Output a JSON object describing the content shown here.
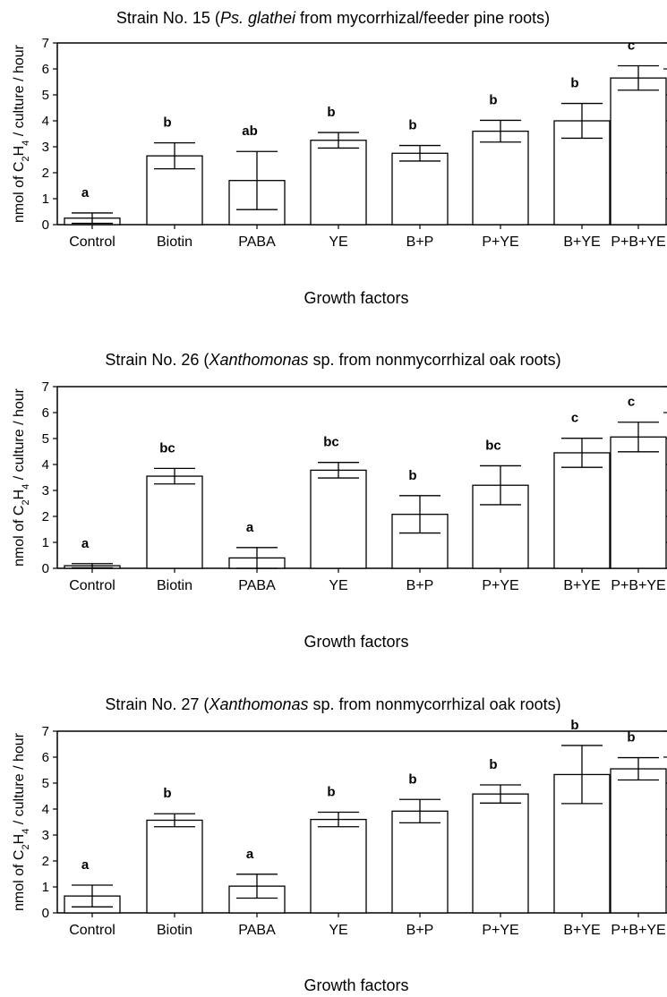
{
  "chart_data": [
    {
      "type": "bar",
      "title": {
        "before": "Strain No. 15 (",
        "italic": "Ps. glathei",
        "after": " from mycorrhizal/feeder pine roots)"
      },
      "xlabel": "Growth factors",
      "ylabel": {
        "pre": "nmol of C",
        "sub1": "2",
        "mid": "H",
        "sub2": "4",
        "post": " / culture / hour"
      },
      "ylim": [
        0,
        7
      ],
      "yticks": [
        "0",
        "1",
        "2",
        "3",
        "4",
        "5",
        "6",
        "7"
      ],
      "categories": [
        "Control",
        "Biotin",
        "PABA",
        "YE",
        "B+P",
        "P+YE",
        "B+YE",
        "P+B+YE"
      ],
      "values": [
        0.25,
        2.65,
        1.7,
        3.25,
        2.75,
        3.6,
        4.0,
        5.65
      ],
      "error": [
        0.2,
        0.5,
        1.12,
        0.3,
        0.3,
        0.42,
        0.67,
        0.47
      ],
      "letters": [
        "a",
        "b",
        "ab",
        "b",
        "b",
        "b",
        "b",
        "c"
      ]
    },
    {
      "type": "bar",
      "title": {
        "before": "Strain No. 26 (",
        "italic": "Xanthomonas",
        "after": " sp. from nonmycorrhizal oak roots)"
      },
      "xlabel": "Growth factors",
      "ylabel": {
        "pre": "nmol of C",
        "sub1": "2",
        "mid": "H",
        "sub2": "4",
        "post": " / culture / hour"
      },
      "ylim": [
        0,
        7
      ],
      "yticks": [
        "0",
        "1",
        "2",
        "3",
        "4",
        "5",
        "6",
        "7"
      ],
      "categories": [
        "Control",
        "Biotin",
        "PABA",
        "YE",
        "B+P",
        "P+YE",
        "B+YE",
        "P+B+YE"
      ],
      "values": [
        0.1,
        3.55,
        0.4,
        3.78,
        2.08,
        3.2,
        4.45,
        5.06
      ],
      "error": [
        0.08,
        0.3,
        0.4,
        0.3,
        0.72,
        0.75,
        0.56,
        0.57
      ],
      "letters": [
        "a",
        "bc",
        "a",
        "bc",
        "b",
        "bc",
        "c",
        "c"
      ]
    },
    {
      "type": "bar",
      "title": {
        "before": "Strain No. 27 (",
        "italic": "Xanthomonas",
        "after": " sp. from nonmycorrhizal oak roots)"
      },
      "xlabel": "Growth factors",
      "ylabel": {
        "pre": "nmol of C",
        "sub1": "2",
        "mid": "H",
        "sub2": "4",
        "post": " / culture / hour"
      },
      "ylim": [
        0,
        7
      ],
      "yticks": [
        "0",
        "1",
        "2",
        "3",
        "4",
        "5",
        "6",
        "7"
      ],
      "categories": [
        "Control",
        "Biotin",
        "PABA",
        "YE",
        "B+P",
        "P+YE",
        "B+YE",
        "P+B+YE"
      ],
      "values": [
        0.65,
        3.57,
        1.03,
        3.6,
        3.92,
        4.58,
        5.33,
        5.55
      ],
      "error": [
        0.42,
        0.25,
        0.46,
        0.28,
        0.45,
        0.35,
        1.12,
        0.43
      ],
      "letters": [
        "a",
        "b",
        "a",
        "b",
        "b",
        "b",
        "b",
        "b"
      ]
    }
  ]
}
